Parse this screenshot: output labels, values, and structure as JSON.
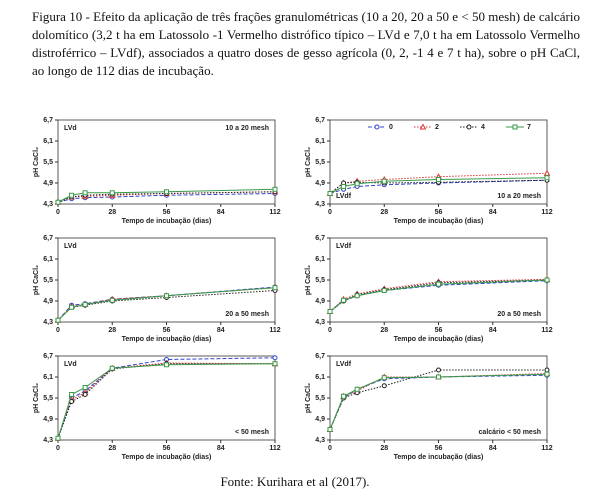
{
  "caption": "Figura 10 - Efeito da aplicação de três frações granulométricas (10 a 20, 20 a 50 e < 50 mesh) de calcário dolomítico (3,2 t ha em Latossolo -1 Vermelho distrófico típico – LVd e 7,0 t ha em Latossolo Vermelho distroférrico – LVdf), associados a quatro doses de gesso agrícola (0, 2, -1 4 e 7 t ha), sobre o pH CaCl, ao longo de 112 dias de incubação.",
  "source": "Fonte: Kurihara et al (2017).",
  "chart_data": [
    {
      "type": "line",
      "soil": "LVd",
      "treatment": "10 a 20 mesh",
      "soil_corner": "top-left",
      "treatment_corner": "top-right",
      "x_label": "Tempo de incubação (dias)",
      "y_label": "pH CaCl₂",
      "x": [
        0,
        7,
        14,
        28,
        56,
        112
      ],
      "xlim": [
        0,
        112
      ],
      "xticks": [
        0,
        28,
        56,
        84,
        112
      ],
      "ylim": [
        4.3,
        6.7
      ],
      "yticks": [
        {
          "value": 4.3,
          "label": "4,3"
        },
        {
          "value": 4.9,
          "label": "4,9"
        },
        {
          "value": 5.5,
          "label": "5,5"
        },
        {
          "value": 6.1,
          "label": "6,1"
        },
        {
          "value": 6.7,
          "label": "6,7"
        }
      ],
      "series": [
        {
          "color": "#3344cc",
          "dash": "dashed",
          "marker": "circle",
          "values": [
            4.35,
            4.45,
            4.48,
            4.5,
            4.55,
            4.6
          ]
        },
        {
          "color": "#dd3333",
          "dash": "dotted",
          "marker": "triangle",
          "values": [
            4.35,
            4.5,
            4.52,
            4.55,
            4.6,
            4.65
          ]
        },
        {
          "color": "#222222",
          "dash": "dotted",
          "marker": "circle",
          "values": [
            4.35,
            4.5,
            4.55,
            4.58,
            4.6,
            4.65
          ]
        },
        {
          "color": "#3a9a4a",
          "dash": "solid",
          "marker": "square",
          "values": [
            4.35,
            4.55,
            4.62,
            4.62,
            4.65,
            4.72
          ]
        }
      ]
    },
    {
      "type": "line",
      "soil": "LVdf",
      "treatment": "10 a 20 mesh",
      "soil_corner": "bottom-left",
      "treatment_corner": "bottom-right",
      "legend": "top",
      "x_label": "Tempo de incubação (dias)",
      "y_label": "pH CaCl₂",
      "x": [
        0,
        7,
        14,
        28,
        56,
        112
      ],
      "xlim": [
        0,
        112
      ],
      "xticks": [
        0,
        28,
        56,
        84,
        112
      ],
      "ylim": [
        4.3,
        6.7
      ],
      "yticks": [
        {
          "value": 4.3,
          "label": "4,3"
        },
        {
          "value": 4.9,
          "label": "4,9"
        },
        {
          "value": 5.5,
          "label": "5,5"
        },
        {
          "value": 6.1,
          "label": "6,1"
        },
        {
          "value": 6.7,
          "label": "6,7"
        }
      ],
      "series": [
        {
          "name": "0",
          "color": "#3344cc",
          "dash": "dashed",
          "marker": "circle",
          "values": [
            4.6,
            4.72,
            4.8,
            4.85,
            4.9,
            4.98
          ]
        },
        {
          "name": "2",
          "color": "#dd3333",
          "dash": "dotted",
          "marker": "triangle",
          "values": [
            4.6,
            4.9,
            4.95,
            5.0,
            5.08,
            5.18
          ]
        },
        {
          "name": "4",
          "color": "#222222",
          "dash": "dotted",
          "marker": "circle",
          "values": [
            4.6,
            4.9,
            4.92,
            4.9,
            4.92,
            4.98
          ]
        },
        {
          "name": "7",
          "color": "#3a9a4a",
          "dash": "solid",
          "marker": "square",
          "values": [
            4.6,
            4.8,
            4.88,
            4.95,
            5.0,
            5.05
          ]
        }
      ]
    },
    {
      "type": "line",
      "soil": "LVd",
      "treatment": "20 a 50 mesh",
      "soil_corner": "top-left",
      "treatment_corner": "bottom-right",
      "x_label": "Tempo de incubação (dias)",
      "y_label": "pH CaCl₂",
      "x": [
        0,
        7,
        14,
        28,
        56,
        112
      ],
      "xlim": [
        0,
        112
      ],
      "xticks": [
        0,
        28,
        56,
        84,
        112
      ],
      "ylim": [
        4.3,
        6.7
      ],
      "yticks": [
        {
          "value": 4.3,
          "label": "4,3"
        },
        {
          "value": 4.9,
          "label": "4,9"
        },
        {
          "value": 5.5,
          "label": "5,5"
        },
        {
          "value": 6.1,
          "label": "6,1"
        },
        {
          "value": 6.7,
          "label": "6,7"
        }
      ],
      "series": [
        {
          "color": "#3344cc",
          "dash": "dashed",
          "marker": "circle",
          "values": [
            4.35,
            4.78,
            4.82,
            4.95,
            5.05,
            5.3
          ]
        },
        {
          "color": "#dd3333",
          "dash": "dotted",
          "marker": "triangle",
          "values": [
            4.35,
            4.75,
            4.8,
            4.95,
            5.05,
            5.28
          ]
        },
        {
          "color": "#222222",
          "dash": "dotted",
          "marker": "circle",
          "values": [
            4.35,
            4.72,
            4.78,
            4.9,
            5.0,
            5.2
          ]
        },
        {
          "color": "#3a9a4a",
          "dash": "solid",
          "marker": "square",
          "values": [
            4.35,
            4.72,
            4.8,
            4.92,
            5.05,
            5.28
          ]
        }
      ]
    },
    {
      "type": "line",
      "soil": "LVdf",
      "treatment": "20 a 50 mesh",
      "soil_corner": "top-left",
      "treatment_corner": "bottom-right",
      "x_label": "Tempo de incubação (dias)",
      "y_label": "pH CaCl₂",
      "x": [
        0,
        7,
        14,
        28,
        56,
        112
      ],
      "xlim": [
        0,
        112
      ],
      "xticks": [
        0,
        28,
        56,
        84,
        112
      ],
      "ylim": [
        4.3,
        6.7
      ],
      "yticks": [
        {
          "value": 4.3,
          "label": "4,3"
        },
        {
          "value": 4.9,
          "label": "4,9"
        },
        {
          "value": 5.5,
          "label": "5,5"
        },
        {
          "value": 6.1,
          "label": "6,1"
        },
        {
          "value": 6.7,
          "label": "6,7"
        }
      ],
      "series": [
        {
          "color": "#3344cc",
          "dash": "dashed",
          "marker": "circle",
          "values": [
            4.6,
            4.9,
            5.05,
            5.2,
            5.35,
            5.48
          ]
        },
        {
          "color": "#dd3333",
          "dash": "dotted",
          "marker": "triangle",
          "values": [
            4.6,
            4.95,
            5.1,
            5.25,
            5.45,
            5.52
          ]
        },
        {
          "color": "#222222",
          "dash": "dotted",
          "marker": "circle",
          "values": [
            4.6,
            4.9,
            5.08,
            5.22,
            5.42,
            5.5
          ]
        },
        {
          "color": "#3a9a4a",
          "dash": "solid",
          "marker": "square",
          "values": [
            4.6,
            4.92,
            5.05,
            5.2,
            5.38,
            5.5
          ]
        }
      ]
    },
    {
      "type": "line",
      "soil": "LVd",
      "treatment": "< 50 mesh",
      "soil_corner": "top-left",
      "treatment_corner": "bottom-right",
      "x_label": "Tempo de incubação (dias)",
      "y_label": "pH CaCl₂",
      "x": [
        0,
        7,
        14,
        28,
        56,
        112
      ],
      "xlim": [
        0,
        112
      ],
      "xticks": [
        0,
        28,
        56,
        84,
        112
      ],
      "ylim": [
        4.3,
        6.7
      ],
      "yticks": [
        {
          "value": 4.3,
          "label": "4,3"
        },
        {
          "value": 4.9,
          "label": "4,9"
        },
        {
          "value": 5.5,
          "label": "5,5"
        },
        {
          "value": 6.1,
          "label": "6,1"
        },
        {
          "value": 6.7,
          "label": "6,7"
        }
      ],
      "series": [
        {
          "color": "#3344cc",
          "dash": "dashed",
          "marker": "circle",
          "values": [
            4.35,
            5.5,
            5.7,
            6.35,
            6.6,
            6.65
          ]
        },
        {
          "color": "#dd3333",
          "dash": "dotted",
          "marker": "triangle",
          "values": [
            4.35,
            5.45,
            5.65,
            6.35,
            6.5,
            6.48
          ]
        },
        {
          "color": "#222222",
          "dash": "dotted",
          "marker": "circle",
          "values": [
            4.35,
            5.4,
            5.6,
            6.33,
            6.48,
            6.48
          ]
        },
        {
          "color": "#3a9a4a",
          "dash": "solid",
          "marker": "square",
          "values": [
            4.35,
            5.6,
            5.8,
            6.35,
            6.45,
            6.48
          ]
        }
      ]
    },
    {
      "type": "line",
      "soil": "LVdf",
      "treatment": "calcário < 50 mesh",
      "soil_corner": "top-left",
      "treatment_corner": "bottom-right",
      "x_label": "Tempo de incubação (dias)",
      "y_label": "pH CaCl₂",
      "x": [
        0,
        7,
        14,
        28,
        56,
        112
      ],
      "xlim": [
        0,
        112
      ],
      "xticks": [
        0,
        28,
        56,
        84,
        112
      ],
      "ylim": [
        4.3,
        6.7
      ],
      "yticks": [
        {
          "value": 4.3,
          "label": "4,3"
        },
        {
          "value": 4.9,
          "label": "4,9"
        },
        {
          "value": 5.5,
          "label": "5,5"
        },
        {
          "value": 6.1,
          "label": "6,1"
        },
        {
          "value": 6.7,
          "label": "6,7"
        }
      ],
      "series": [
        {
          "color": "#3344cc",
          "dash": "dashed",
          "marker": "circle",
          "values": [
            4.6,
            5.5,
            5.75,
            6.05,
            6.1,
            6.15
          ]
        },
        {
          "color": "#dd3333",
          "dash": "dotted",
          "marker": "triangle",
          "values": [
            4.6,
            5.55,
            5.7,
            6.1,
            6.1,
            6.2
          ]
        },
        {
          "color": "#222222",
          "dash": "dotted",
          "marker": "circle",
          "values": [
            4.6,
            5.5,
            5.65,
            5.85,
            6.3,
            6.3
          ]
        },
        {
          "color": "#3a9a4a",
          "dash": "solid",
          "marker": "square",
          "values": [
            4.6,
            5.55,
            5.75,
            6.08,
            6.1,
            6.18
          ]
        }
      ]
    }
  ]
}
